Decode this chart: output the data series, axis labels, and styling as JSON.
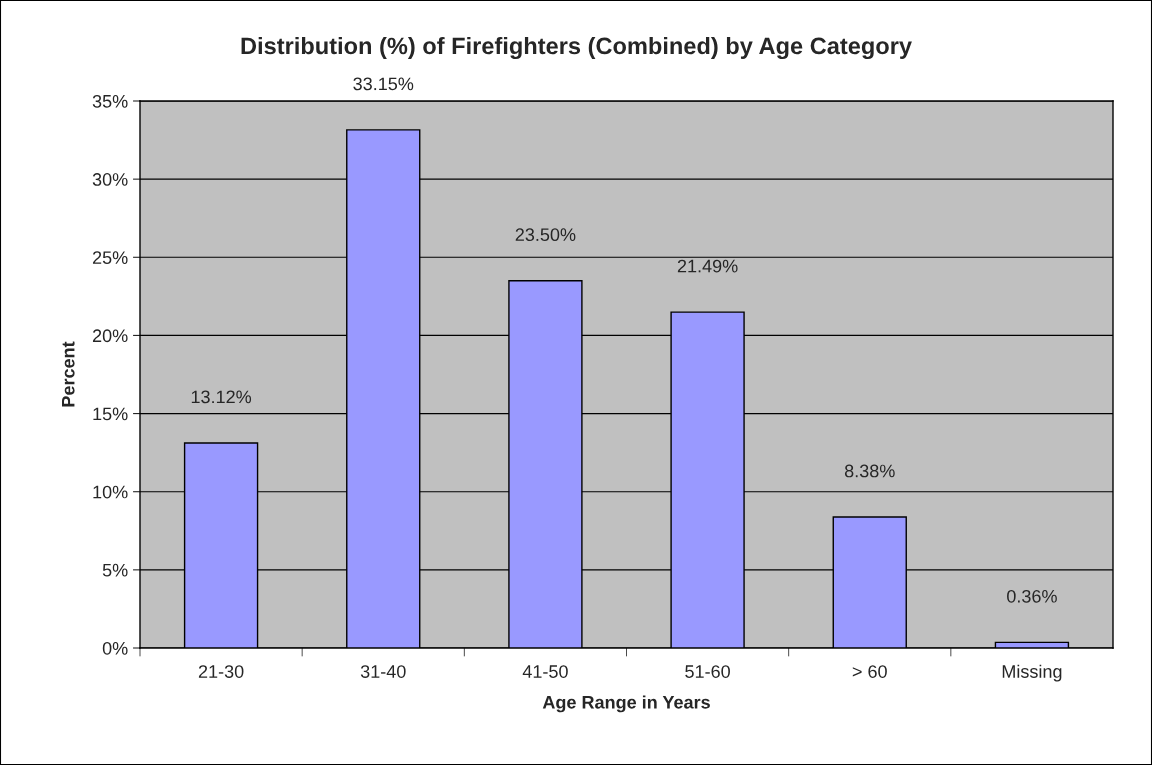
{
  "chart_data": {
    "type": "bar",
    "title": "Distribution (%) of Firefighters (Combined) by Age Category",
    "xlabel": "Age Range in Years",
    "ylabel": "Percent",
    "categories": [
      "21-30",
      "31-40",
      "41-50",
      "51-60",
      "> 60",
      "Missing"
    ],
    "values": [
      13.12,
      33.15,
      23.5,
      21.49,
      8.38,
      0.36
    ],
    "value_labels": [
      "13.12%",
      "33.15%",
      "23.50%",
      "21.49%",
      "8.38%",
      "0.36%"
    ],
    "color": "#9999ff",
    "ylim": [
      0,
      35
    ],
    "yticks": [
      {
        "value": 0,
        "label": "0%"
      },
      {
        "value": 5,
        "label": "5%"
      },
      {
        "value": 10,
        "label": "10%"
      },
      {
        "value": 15,
        "label": "15%"
      },
      {
        "value": 20,
        "label": "20%"
      },
      {
        "value": 25,
        "label": "25%"
      },
      {
        "value": 30,
        "label": "30%"
      },
      {
        "value": 35,
        "label": "35%"
      }
    ],
    "grid": "y",
    "legend": false
  }
}
